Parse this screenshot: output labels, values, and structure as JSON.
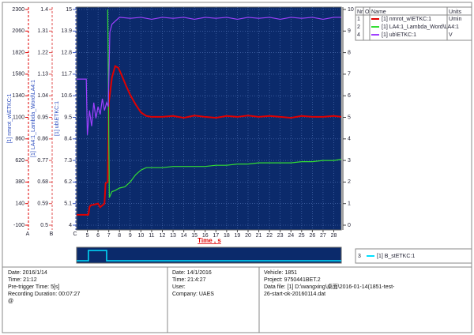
{
  "chart_data": {
    "type": "line",
    "x_label": "Time , s",
    "xlim": [
      4,
      28.7
    ],
    "xticks": [
      5,
      6,
      7,
      8,
      9,
      10,
      11,
      12,
      13,
      14,
      15,
      16,
      17,
      18,
      19,
      20,
      21,
      22,
      23,
      24,
      25,
      26,
      27,
      28
    ],
    "grid": true,
    "axes": [
      {
        "letter": "A",
        "color": "#e00000",
        "lim": [
          -100,
          2300
        ],
        "ticks": [
          -100,
          140,
          380,
          620,
          860,
          1100,
          1340,
          1580,
          1820,
          2060,
          2300
        ]
      },
      {
        "letter": "B",
        "color": "#e05050",
        "lim": [
          0.5,
          1.4
        ],
        "ticks": [
          0.5,
          0.59,
          0.68,
          0.77,
          0.86,
          0.95,
          1.04,
          1.13,
          1.22,
          1.31,
          1.4
        ]
      },
      {
        "letter": "C",
        "color": "#3050c0",
        "lim": [
          4,
          15
        ],
        "ticks": [
          4,
          5.1,
          6.2,
          7.3,
          8.4,
          9.5,
          10.6,
          11.7,
          12.8,
          13.9,
          15
        ]
      }
    ],
    "y2lim": [
      0,
      10
    ],
    "y2ticks": [
      0,
      1,
      2,
      3,
      4,
      5,
      6,
      7,
      8,
      9,
      10
    ],
    "legend_header": [
      "Nr",
      "O",
      "Name",
      "Units"
    ],
    "series": [
      {
        "number": "1",
        "name": "[1] nmrot_w\\ETKC:1",
        "unit": "Umin",
        "color": "#e00000",
        "axis": 0,
        "x": [
          4,
          5.1,
          5.2,
          5.3,
          6.0,
          6.2,
          6.6,
          6.7,
          6.9,
          7.0,
          7.3,
          7.6,
          7.9,
          8.2,
          8.6,
          9.0,
          9.5,
          10.0,
          10.5,
          11.0,
          12,
          13,
          14,
          15,
          16,
          17,
          18,
          19,
          20,
          21,
          22,
          23,
          24,
          25,
          26,
          27,
          28,
          28.7
        ],
        "values": [
          15,
          15,
          100,
          120,
          140,
          100,
          140,
          365,
          380,
          1260,
          1545,
          1670,
          1650,
          1570,
          1455,
          1350,
          1245,
          1155,
          1115,
          1105,
          1105,
          1115,
          1095,
          1120,
          1105,
          1095,
          1115,
          1105,
          1120,
          1105,
          1115,
          1105,
          1095,
          1115,
          1105,
          1105,
          1115,
          1105
        ]
      },
      {
        "number": "2",
        "name": "[1] LA4:1_Lambda_Word\\LA4:1",
        "color": "#33dd33",
        "axis": 1,
        "x": [
          6.9,
          7.05,
          7.3,
          7.6,
          8.0,
          8.5,
          9.0,
          9.5,
          10.0,
          10.5,
          11,
          12,
          13,
          14,
          15,
          16,
          17,
          18,
          19,
          20,
          21,
          22,
          23,
          24,
          25,
          26,
          27,
          28,
          28.7
        ],
        "values": [
          1.4,
          0.615,
          0.64,
          0.645,
          0.655,
          0.66,
          0.68,
          0.71,
          0.73,
          0.74,
          0.74,
          0.74,
          0.745,
          0.745,
          0.745,
          0.745,
          0.75,
          0.75,
          0.755,
          0.755,
          0.76,
          0.76,
          0.76,
          0.76,
          0.765,
          0.765,
          0.77,
          0.77,
          0.775
        ]
      },
      {
        "number": "4",
        "name": "[1] ub\\ETKC:1",
        "unit": "V",
        "color": "#a040ff",
        "axis": 2,
        "x": [
          4,
          4.9,
          5.0,
          5.2,
          5.4,
          5.6,
          5.8,
          6.0,
          6.2,
          6.4,
          6.6,
          6.8,
          6.95,
          7.1,
          7.3,
          8,
          9,
          10,
          11,
          12,
          13,
          14,
          15,
          16,
          17,
          18,
          19,
          20,
          21,
          22,
          23,
          24,
          25,
          26,
          27,
          28,
          28.7
        ],
        "values": [
          11.45,
          11.45,
          8.6,
          9.85,
          9.05,
          10.25,
          9.45,
          10.05,
          9.65,
          10.45,
          9.85,
          10.25,
          10.05,
          13.85,
          14.25,
          14.6,
          14.55,
          14.6,
          14.5,
          14.6,
          14.55,
          14.6,
          14.5,
          14.6,
          14.55,
          14.6,
          14.5,
          14.6,
          14.55,
          14.6,
          14.5,
          14.6,
          14.55,
          14.6,
          14.5,
          14.6,
          14.6
        ]
      }
    ],
    "digital": {
      "number": "3",
      "name": "[1] B_stETKC:1",
      "color": "#00e0ff",
      "x": [
        4,
        5.1,
        5.1,
        6.8,
        6.8,
        28.7
      ],
      "values": [
        0,
        0,
        1,
        1,
        0,
        0
      ]
    }
  },
  "footer": [
    [
      "Date: 2016/1/14",
      "Time: 21:12",
      "Pre-trigger Time: 5[s]",
      "Recording Duration: 00:07:27",
      "@"
    ],
    [
      "Date: 14/1/2016",
      "Time: 21:4:27",
      "User:",
      "Company: UAES"
    ],
    [
      "Vehicle: 1851",
      "Project: 9750441BET.2",
      "Data file:  [1] D:\\wangxing\\桌面\\2016-01-14(1851-test-26-start-ok-20160114.dat"
    ]
  ]
}
